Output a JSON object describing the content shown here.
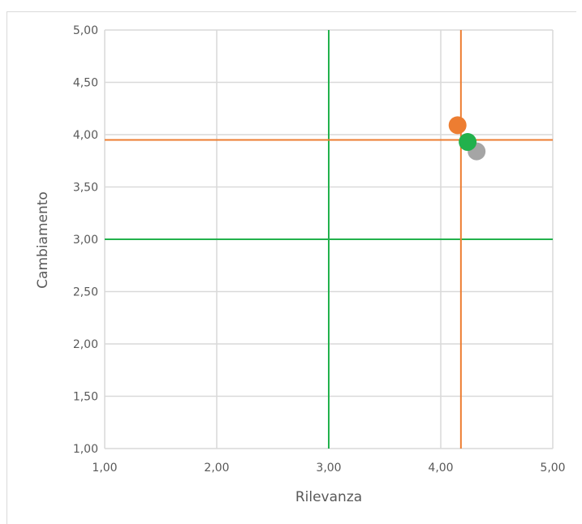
{
  "chart_data": {
    "type": "scatter",
    "title": "",
    "xlabel": "Rilevanza",
    "ylabel": "Cambiamento",
    "xlim": [
      1.0,
      5.0
    ],
    "ylim": [
      1.0,
      5.0
    ],
    "x_ticks": [
      "1,00",
      "2,00",
      "3,00",
      "4,00",
      "5,00"
    ],
    "y_ticks": [
      "1,00",
      "1,50",
      "2,00",
      "2,50",
      "3,00",
      "3,50",
      "4,00",
      "4,50",
      "5,00"
    ],
    "grid": true,
    "series": [
      {
        "color": "#ED7D31",
        "points": [
          {
            "x": 4.15,
            "y": 4.09
          }
        ]
      },
      {
        "color": "#A5A5A5",
        "points": [
          {
            "x": 4.32,
            "y": 3.84
          }
        ]
      },
      {
        "color": "#22B14C",
        "points": [
          {
            "x": 4.24,
            "y": 3.93
          }
        ]
      }
    ],
    "reference_lines": [
      {
        "orientation": "vertical",
        "value": 3.0,
        "color": "#22B14C"
      },
      {
        "orientation": "horizontal",
        "value": 3.0,
        "color": "#22B14C"
      },
      {
        "orientation": "vertical",
        "value": 4.18,
        "color": "#ED7D31"
      },
      {
        "orientation": "horizontal",
        "value": 3.95,
        "color": "#ED7D31"
      }
    ]
  }
}
